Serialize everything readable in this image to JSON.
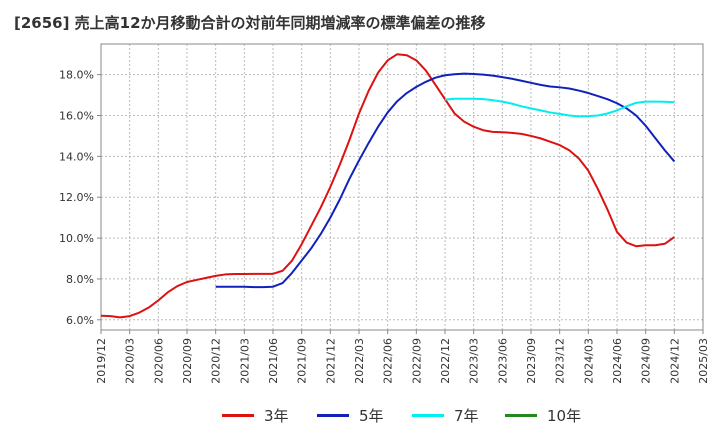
{
  "chart_data": {
    "type": "line",
    "title": "[2656]  売上高12か月移動合計の対前年同期増減率の標準偏差の推移",
    "xlabel": "",
    "ylabel": "",
    "x_ticks": [
      "2019/12",
      "2020/03",
      "2020/06",
      "2020/09",
      "2020/12",
      "2021/03",
      "2021/06",
      "2021/09",
      "2021/12",
      "2022/03",
      "2022/06",
      "2022/09",
      "2022/12",
      "2023/03",
      "2023/06",
      "2023/09",
      "2023/12",
      "2024/03",
      "2024/06",
      "2024/09",
      "2024/12",
      "2025/03"
    ],
    "y_ticks": [
      "6.0%",
      "8.0%",
      "10.0%",
      "12.0%",
      "14.0%",
      "16.0%",
      "18.0%"
    ],
    "ylim": [
      5.5,
      19.5
    ],
    "grid": true,
    "legend_position": "bottom",
    "series": [
      {
        "name": "3年",
        "color": "#dd1111",
        "points": [
          [
            "2019/12",
            6.2
          ],
          [
            "2020/01",
            6.18
          ],
          [
            "2020/02",
            6.12
          ],
          [
            "2020/03",
            6.18
          ],
          [
            "2020/04",
            6.35
          ],
          [
            "2020/05",
            6.6
          ],
          [
            "2020/06",
            6.95
          ],
          [
            "2020/07",
            7.35
          ],
          [
            "2020/08",
            7.65
          ],
          [
            "2020/09",
            7.85
          ],
          [
            "2020/10",
            7.95
          ],
          [
            "2020/11",
            8.05
          ],
          [
            "2020/12",
            8.15
          ],
          [
            "2021/01",
            8.22
          ],
          [
            "2021/02",
            8.24
          ],
          [
            "2021/03",
            8.24
          ],
          [
            "2021/04",
            8.25
          ],
          [
            "2021/05",
            8.25
          ],
          [
            "2021/06",
            8.25
          ],
          [
            "2021/07",
            8.4
          ],
          [
            "2021/08",
            8.9
          ],
          [
            "2021/09",
            9.7
          ],
          [
            "2021/10",
            10.6
          ],
          [
            "2021/11",
            11.5
          ],
          [
            "2021/12",
            12.5
          ],
          [
            "2022/01",
            13.6
          ],
          [
            "2022/02",
            14.8
          ],
          [
            "2022/03",
            16.1
          ],
          [
            "2022/04",
            17.2
          ],
          [
            "2022/05",
            18.1
          ],
          [
            "2022/06",
            18.7
          ],
          [
            "2022/07",
            19.0
          ],
          [
            "2022/08",
            18.95
          ],
          [
            "2022/09",
            18.7
          ],
          [
            "2022/10",
            18.2
          ],
          [
            "2022/11",
            17.5
          ],
          [
            "2022/12",
            16.8
          ],
          [
            "2023/01",
            16.1
          ],
          [
            "2023/02",
            15.7
          ],
          [
            "2023/03",
            15.45
          ],
          [
            "2023/04",
            15.28
          ],
          [
            "2023/05",
            15.2
          ],
          [
            "2023/06",
            15.18
          ],
          [
            "2023/07",
            15.15
          ],
          [
            "2023/08",
            15.1
          ],
          [
            "2023/09",
            15.0
          ],
          [
            "2023/10",
            14.88
          ],
          [
            "2023/11",
            14.72
          ],
          [
            "2023/12",
            14.55
          ],
          [
            "2024/01",
            14.3
          ],
          [
            "2024/02",
            13.9
          ],
          [
            "2024/03",
            13.3
          ],
          [
            "2024/04",
            12.4
          ],
          [
            "2024/05",
            11.4
          ],
          [
            "2024/06",
            10.3
          ],
          [
            "2024/07",
            9.78
          ],
          [
            "2024/08",
            9.6
          ],
          [
            "2024/09",
            9.65
          ],
          [
            "2024/10",
            9.65
          ],
          [
            "2024/11",
            9.72
          ],
          [
            "2024/12",
            10.05
          ]
        ]
      },
      {
        "name": "5年",
        "color": "#1122bb",
        "points": [
          [
            "2020/12",
            7.62
          ],
          [
            "2021/01",
            7.62
          ],
          [
            "2021/02",
            7.62
          ],
          [
            "2021/03",
            7.62
          ],
          [
            "2021/04",
            7.6
          ],
          [
            "2021/05",
            7.6
          ],
          [
            "2021/06",
            7.62
          ],
          [
            "2021/07",
            7.8
          ],
          [
            "2021/08",
            8.3
          ],
          [
            "2021/09",
            8.9
          ],
          [
            "2021/10",
            9.5
          ],
          [
            "2021/11",
            10.2
          ],
          [
            "2021/12",
            11.0
          ],
          [
            "2022/01",
            11.9
          ],
          [
            "2022/02",
            12.9
          ],
          [
            "2022/03",
            13.8
          ],
          [
            "2022/04",
            14.65
          ],
          [
            "2022/05",
            15.45
          ],
          [
            "2022/06",
            16.15
          ],
          [
            "2022/07",
            16.7
          ],
          [
            "2022/08",
            17.1
          ],
          [
            "2022/09",
            17.4
          ],
          [
            "2022/10",
            17.65
          ],
          [
            "2022/11",
            17.85
          ],
          [
            "2022/12",
            17.97
          ],
          [
            "2023/01",
            18.02
          ],
          [
            "2023/02",
            18.05
          ],
          [
            "2023/03",
            18.03
          ],
          [
            "2023/04",
            18.0
          ],
          [
            "2023/05",
            17.95
          ],
          [
            "2023/06",
            17.88
          ],
          [
            "2023/07",
            17.8
          ],
          [
            "2023/08",
            17.7
          ],
          [
            "2023/09",
            17.6
          ],
          [
            "2023/10",
            17.5
          ],
          [
            "2023/11",
            17.42
          ],
          [
            "2023/12",
            17.38
          ],
          [
            "2024/01",
            17.32
          ],
          [
            "2024/02",
            17.22
          ],
          [
            "2024/03",
            17.1
          ],
          [
            "2024/04",
            16.95
          ],
          [
            "2024/05",
            16.8
          ],
          [
            "2024/06",
            16.6
          ],
          [
            "2024/07",
            16.35
          ],
          [
            "2024/08",
            16.0
          ],
          [
            "2024/09",
            15.5
          ],
          [
            "2024/10",
            14.9
          ],
          [
            "2024/11",
            14.3
          ],
          [
            "2024/12",
            13.75
          ]
        ]
      },
      {
        "name": "7年",
        "color": "#00eeee",
        "points": [
          [
            "2022/12",
            16.78
          ],
          [
            "2023/01",
            16.82
          ],
          [
            "2023/02",
            16.82
          ],
          [
            "2023/03",
            16.82
          ],
          [
            "2023/04",
            16.8
          ],
          [
            "2023/05",
            16.75
          ],
          [
            "2023/06",
            16.68
          ],
          [
            "2023/07",
            16.58
          ],
          [
            "2023/08",
            16.45
          ],
          [
            "2023/09",
            16.35
          ],
          [
            "2023/10",
            16.25
          ],
          [
            "2023/11",
            16.15
          ],
          [
            "2023/12",
            16.08
          ],
          [
            "2024/01",
            16.0
          ],
          [
            "2024/02",
            15.96
          ],
          [
            "2024/03",
            15.97
          ],
          [
            "2024/04",
            16.0
          ],
          [
            "2024/05",
            16.1
          ],
          [
            "2024/06",
            16.25
          ],
          [
            "2024/07",
            16.45
          ],
          [
            "2024/08",
            16.62
          ],
          [
            "2024/09",
            16.68
          ],
          [
            "2024/10",
            16.68
          ],
          [
            "2024/11",
            16.67
          ],
          [
            "2024/12",
            16.65
          ]
        ]
      },
      {
        "name": "10年",
        "color": "#228822",
        "points": []
      }
    ]
  }
}
